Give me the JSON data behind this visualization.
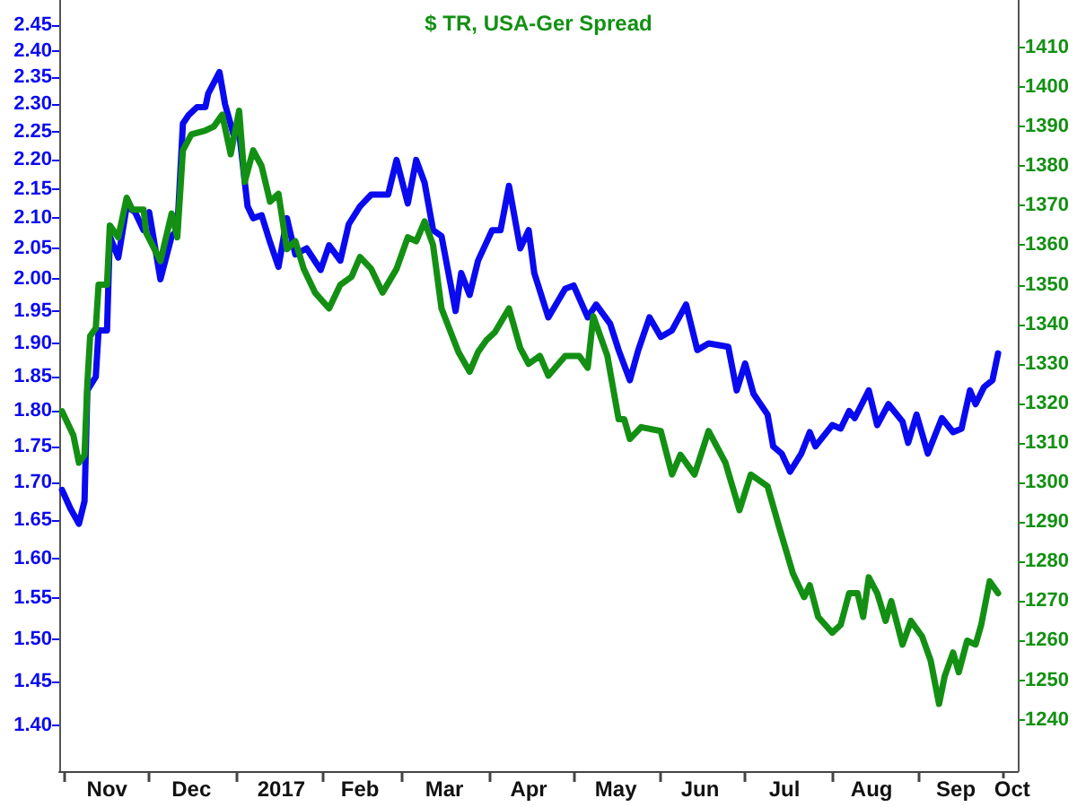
{
  "chart_data": {
    "type": "line",
    "title": "$ TR, USA-Ger Spread",
    "log": "y",
    "grid": false,
    "marker": "none",
    "line_style": "solid",
    "xlim": [
      "2016-10-30",
      "2017-10-06"
    ],
    "xticks": [
      {
        "value": "2016-11-01",
        "label": null
      },
      {
        "value": "2016-12-01",
        "label": null
      },
      {
        "value": "2017-01-01",
        "label": null
      },
      {
        "value": "2017-02-01",
        "label": null
      },
      {
        "value": "2017-03-01",
        "label": null
      },
      {
        "value": "2017-04-01",
        "label": null
      },
      {
        "value": "2017-05-01",
        "label": null
      },
      {
        "value": "2017-06-01",
        "label": null
      },
      {
        "value": "2017-07-01",
        "label": null
      },
      {
        "value": "2017-08-01",
        "label": null
      },
      {
        "value": "2017-09-01",
        "label": null
      },
      {
        "value": "2017-10-01",
        "label": null
      },
      {
        "value": "2016-11-16",
        "label": "Nov"
      },
      {
        "value": "2016-12-16",
        "label": "Dec"
      },
      {
        "value": "2017-01-17",
        "label": "2017"
      },
      {
        "value": "2017-02-14",
        "label": "Feb"
      },
      {
        "value": "2017-03-16",
        "label": "Mar"
      },
      {
        "value": "2017-04-15",
        "label": "Apr"
      },
      {
        "value": "2017-05-16",
        "label": "May"
      },
      {
        "value": "2017-06-15",
        "label": "Jun"
      },
      {
        "value": "2017-07-15",
        "label": "Jul"
      },
      {
        "value": "2017-08-15",
        "label": "Aug"
      },
      {
        "value": "2017-09-14",
        "label": "Sep"
      },
      {
        "value": "2017-10-04",
        "label": "Oct"
      }
    ],
    "ylim": [
      1.35,
      2.5
    ],
    "yticks": [
      {
        "value": 1.4,
        "label": "1.40"
      },
      {
        "value": 1.45,
        "label": "1.45"
      },
      {
        "value": 1.5,
        "label": "1.50"
      },
      {
        "value": 1.55,
        "label": "1.55"
      },
      {
        "value": 1.6,
        "label": "1.60"
      },
      {
        "value": 1.65,
        "label": "1.65"
      },
      {
        "value": 1.7,
        "label": "1.70"
      },
      {
        "value": 1.75,
        "label": "1.75"
      },
      {
        "value": 1.8,
        "label": "1.80"
      },
      {
        "value": 1.85,
        "label": "1.85"
      },
      {
        "value": 1.9,
        "label": "1.90"
      },
      {
        "value": 1.95,
        "label": "1.95"
      },
      {
        "value": 2.0,
        "label": "2.00"
      },
      {
        "value": 2.05,
        "label": "2.05"
      },
      {
        "value": 2.1,
        "label": "2.10"
      },
      {
        "value": 2.15,
        "label": "2.15"
      },
      {
        "value": 2.2,
        "label": "2.20"
      },
      {
        "value": 2.25,
        "label": "2.25"
      },
      {
        "value": 2.3,
        "label": "2.30"
      },
      {
        "value": 2.35,
        "label": "2.35"
      },
      {
        "value": 2.4,
        "label": "2.40"
      },
      {
        "value": 2.45,
        "label": "2.45"
      }
    ],
    "y2lim": [
      1227,
      1422
    ],
    "y2ticks": [
      1240,
      1250,
      1260,
      1270,
      1280,
      1290,
      1300,
      1310,
      1320,
      1330,
      1340,
      1350,
      1360,
      1370,
      1380,
      1390,
      1400,
      1410
    ],
    "series": [
      {
        "color": "#0a0af0",
        "x": [
          "2016-10-31",
          "2016-11-03",
          "2016-11-06",
          "2016-11-08",
          "2016-11-09",
          "2016-11-12",
          "2016-11-13",
          "2016-11-16",
          "2016-11-17",
          "2016-11-20",
          "2016-11-23",
          "2016-11-26",
          "2016-11-29",
          "2016-12-01",
          "2016-12-05",
          "2016-12-09",
          "2016-12-11",
          "2016-12-13",
          "2016-12-15",
          "2016-12-18",
          "2016-12-21",
          "2016-12-22",
          "2016-12-26",
          "2016-12-28",
          "2016-12-31",
          "2017-01-02",
          "2017-01-05",
          "2017-01-07",
          "2017-01-10",
          "2017-01-13",
          "2017-01-16",
          "2017-01-19",
          "2017-01-22",
          "2017-01-26",
          "2017-01-31",
          "2017-02-03",
          "2017-02-07",
          "2017-02-10",
          "2017-02-14",
          "2017-02-18",
          "2017-02-24",
          "2017-02-27",
          "2017-03-03",
          "2017-03-06",
          "2017-03-09",
          "2017-03-12",
          "2017-03-15",
          "2017-03-20",
          "2017-03-22",
          "2017-03-25",
          "2017-03-28",
          "2017-04-02",
          "2017-04-05",
          "2017-04-08",
          "2017-04-12",
          "2017-04-15",
          "2017-04-17",
          "2017-04-22",
          "2017-04-28",
          "2017-05-01",
          "2017-05-06",
          "2017-05-09",
          "2017-05-14",
          "2017-05-17",
          "2017-05-21",
          "2017-05-24",
          "2017-05-28",
          "2017-06-01",
          "2017-06-05",
          "2017-06-10",
          "2017-06-14",
          "2017-06-18",
          "2017-06-25",
          "2017-06-28",
          "2017-07-01",
          "2017-07-04",
          "2017-07-09",
          "2017-07-11",
          "2017-07-14",
          "2017-07-17",
          "2017-07-21",
          "2017-07-24",
          "2017-07-26",
          "2017-08-01",
          "2017-08-04",
          "2017-08-07",
          "2017-08-09",
          "2017-08-14",
          "2017-08-17",
          "2017-08-21",
          "2017-08-26",
          "2017-08-28",
          "2017-08-31",
          "2017-09-04",
          "2017-09-09",
          "2017-09-13",
          "2017-09-16",
          "2017-09-19",
          "2017-09-21",
          "2017-09-24",
          "2017-09-27",
          "2017-09-29"
        ],
        "values": [
          1.69,
          1.665,
          1.645,
          1.675,
          1.83,
          1.85,
          1.92,
          1.92,
          2.07,
          2.035,
          2.12,
          2.11,
          2.08,
          2.11,
          2.0,
          2.07,
          2.08,
          2.265,
          2.28,
          2.295,
          2.295,
          2.32,
          2.36,
          2.3,
          2.245,
          2.25,
          2.12,
          2.1,
          2.105,
          2.06,
          2.02,
          2.1,
          2.04,
          2.05,
          2.015,
          2.055,
          2.03,
          2.09,
          2.12,
          2.14,
          2.14,
          2.2,
          2.125,
          2.2,
          2.16,
          2.08,
          2.07,
          1.95,
          2.01,
          1.975,
          2.03,
          2.08,
          2.08,
          2.155,
          2.05,
          2.08,
          2.01,
          1.94,
          1.985,
          1.99,
          1.94,
          1.96,
          1.93,
          1.89,
          1.845,
          1.89,
          1.94,
          1.91,
          1.92,
          1.96,
          1.89,
          1.9,
          1.895,
          1.83,
          1.87,
          1.825,
          1.795,
          1.75,
          1.74,
          1.715,
          1.74,
          1.77,
          1.75,
          1.78,
          1.775,
          1.8,
          1.79,
          1.83,
          1.78,
          1.81,
          1.785,
          1.755,
          1.795,
          1.74,
          1.79,
          1.77,
          1.775,
          1.83,
          1.81,
          1.835,
          1.845,
          1.885
        ]
      },
      {
        "color": "#139013",
        "axis": "y2",
        "x": [
          "2016-10-31",
          "2016-11-04",
          "2016-11-06",
          "2016-11-08",
          "2016-11-09",
          "2016-11-10",
          "2016-11-12",
          "2016-11-13",
          "2016-11-16",
          "2016-11-17",
          "2016-11-20",
          "2016-11-23",
          "2016-11-25",
          "2016-11-29",
          "2016-11-30",
          "2016-12-05",
          "2016-12-09",
          "2016-12-11",
          "2016-12-13",
          "2016-12-16",
          "2016-12-21",
          "2016-12-24",
          "2016-12-27",
          "2016-12-30",
          "2017-01-02",
          "2017-01-04",
          "2017-01-07",
          "2017-01-10",
          "2017-01-13",
          "2017-01-16",
          "2017-01-19",
          "2017-01-22",
          "2017-01-25",
          "2017-01-29",
          "2017-02-03",
          "2017-02-07",
          "2017-02-11",
          "2017-02-14",
          "2017-02-18",
          "2017-02-22",
          "2017-02-27",
          "2017-03-03",
          "2017-03-06",
          "2017-03-09",
          "2017-03-12",
          "2017-03-15",
          "2017-03-21",
          "2017-03-25",
          "2017-03-28",
          "2017-03-31",
          "2017-04-03",
          "2017-04-08",
          "2017-04-12",
          "2017-04-15",
          "2017-04-19",
          "2017-04-22",
          "2017-04-28",
          "2017-05-03",
          "2017-05-06",
          "2017-05-08",
          "2017-05-13",
          "2017-05-17",
          "2017-05-19",
          "2017-05-21",
          "2017-05-25",
          "2017-06-01",
          "2017-06-05",
          "2017-06-08",
          "2017-06-13",
          "2017-06-18",
          "2017-06-24",
          "2017-06-29",
          "2017-07-03",
          "2017-07-09",
          "2017-07-13",
          "2017-07-18",
          "2017-07-22",
          "2017-07-24",
          "2017-07-27",
          "2017-08-01",
          "2017-08-04",
          "2017-08-07",
          "2017-08-10",
          "2017-08-12",
          "2017-08-14",
          "2017-08-17",
          "2017-08-20",
          "2017-08-22",
          "2017-08-26",
          "2017-08-29",
          "2017-09-02",
          "2017-09-05",
          "2017-09-08",
          "2017-09-10",
          "2017-09-13",
          "2017-09-15",
          "2017-09-18",
          "2017-09-21",
          "2017-09-23",
          "2017-09-26",
          "2017-09-29"
        ],
        "values": [
          1318,
          1312,
          1305,
          1307,
          1325,
          1337,
          1339,
          1350,
          1350,
          1365,
          1362,
          1372,
          1369,
          1369,
          1363,
          1356,
          1368,
          1362,
          1384,
          1388,
          1389,
          1390,
          1393,
          1383,
          1394,
          1376,
          1384,
          1380,
          1371,
          1373,
          1359,
          1361,
          1354,
          1348,
          1344,
          1350,
          1352,
          1357,
          1354,
          1348,
          1354,
          1362,
          1361,
          1366,
          1360,
          1344,
          1333,
          1328,
          1333,
          1336,
          1338,
          1344,
          1334,
          1330,
          1332,
          1327,
          1332,
          1332,
          1329,
          1342,
          1332,
          1316,
          1316,
          1311,
          1314,
          1313,
          1302,
          1307,
          1302,
          1313,
          1305,
          1293,
          1302,
          1299,
          1289,
          1277,
          1271,
          1274,
          1266,
          1262,
          1264,
          1272,
          1272,
          1266,
          1276,
          1272,
          1265,
          1270,
          1259,
          1265,
          1261,
          1255,
          1244,
          1251,
          1257,
          1252,
          1260,
          1259,
          1264,
          1275,
          1272
        ]
      }
    ]
  }
}
